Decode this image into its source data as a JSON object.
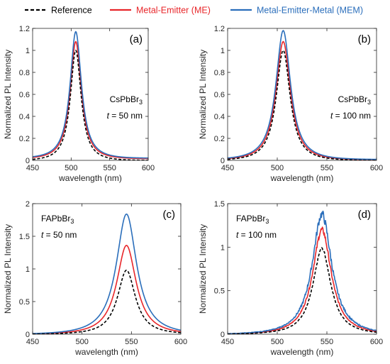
{
  "colors": {
    "reference": "#000000",
    "me": "#e8262a",
    "mem": "#2a6ebb"
  },
  "legend": [
    {
      "name": "Reference",
      "color": "#000000",
      "dashed": true
    },
    {
      "name": "Metal-Emitter (ME)",
      "color": "#e8262a",
      "dashed": false
    },
    {
      "name": "Metal-Emitter-Metal (MEM)",
      "color": "#2a6ebb",
      "dashed": false
    }
  ],
  "chart_data": [
    {
      "type": "line",
      "panel_label": "(a)",
      "material": "CsPbBr",
      "material_sub": "3",
      "thickness": "= 50 nm",
      "annot_pos": "right",
      "xlabel": "wavelength (nm)",
      "ylabel": "Normalized PL Intensity",
      "xlim": [
        450,
        600
      ],
      "ylim": [
        0,
        1.2
      ],
      "xticks": [
        "450",
        "500",
        "550",
        "600"
      ],
      "yticks": [
        "0",
        "0.2",
        "0.4",
        "0.6",
        "0.8",
        "1",
        "1.2"
      ],
      "ytick_values": [
        0,
        0.2,
        0.4,
        0.6,
        0.8,
        1.0,
        1.2
      ],
      "series": [
        {
          "name": "Reference",
          "peak": 1.0,
          "center": 506,
          "width": 8.5,
          "baseline": 0.0,
          "noise": 0
        },
        {
          "name": "Metal-Emitter (ME)",
          "peak": 1.08,
          "center": 506,
          "width": 8.8,
          "baseline": 0.015,
          "noise": 0
        },
        {
          "name": "Metal-Emitter-Metal (MEM)",
          "peak": 1.17,
          "center": 506,
          "width": 9.0,
          "baseline": 0.02,
          "noise": 0
        }
      ]
    },
    {
      "type": "line",
      "panel_label": "(b)",
      "material": "CsPbBr",
      "material_sub": "3",
      "thickness": "= 100 nm",
      "annot_pos": "right",
      "xlabel": "wavelength (nm)",
      "ylabel": "Normalized PL Intensity",
      "xlim": [
        450,
        600
      ],
      "ylim": [
        0,
        1.2
      ],
      "xticks": [
        "450",
        "500",
        "550",
        "600"
      ],
      "yticks": [
        "0",
        "0.2",
        "0.4",
        "0.6",
        "0.8",
        "1",
        "1.2"
      ],
      "ytick_values": [
        0,
        0.2,
        0.4,
        0.6,
        0.8,
        1.0,
        1.2
      ],
      "series": [
        {
          "name": "Reference",
          "peak": 1.0,
          "center": 506,
          "width": 8.5,
          "baseline": 0.0,
          "noise": 0
        },
        {
          "name": "Metal-Emitter (ME)",
          "peak": 1.08,
          "center": 506,
          "width": 8.8,
          "baseline": 0.005,
          "noise": 0
        },
        {
          "name": "Metal-Emitter-Metal (MEM)",
          "peak": 1.18,
          "center": 506,
          "width": 9.0,
          "baseline": 0.008,
          "noise": 0
        }
      ]
    },
    {
      "type": "line",
      "panel_label": "(c)",
      "material": "FAPbBr",
      "material_sub": "3",
      "thickness": "= 50 nm",
      "annot_pos": "left",
      "xlabel": "wavelength (nm)",
      "ylabel": "Normalized PL Intensity",
      "xlim": [
        450,
        600
      ],
      "ylim": [
        0,
        2
      ],
      "xticks": [
        "450",
        "500",
        "550",
        "600"
      ],
      "yticks": [
        "0",
        "0.5",
        "1",
        "1.5",
        "2"
      ],
      "ytick_values": [
        0,
        0.5,
        1.0,
        1.5,
        2.0
      ],
      "series": [
        {
          "name": "Reference",
          "peak": 0.98,
          "center": 545,
          "width": 11,
          "baseline": 0.0,
          "noise": 0
        },
        {
          "name": "Metal-Emitter (ME)",
          "peak": 1.36,
          "center": 545,
          "width": 12,
          "baseline": 0.0,
          "noise": 0
        },
        {
          "name": "Metal-Emitter-Metal (MEM)",
          "peak": 1.84,
          "center": 545,
          "width": 12.5,
          "baseline": 0.0,
          "noise": 0
        }
      ]
    },
    {
      "type": "line",
      "panel_label": "(d)",
      "material": "FAPbBr",
      "material_sub": "3",
      "thickness": "= 100 nm",
      "annot_pos": "left",
      "xlabel": "wavelength (nm)",
      "ylabel": "Normalized PL Intensity",
      "xlim": [
        450,
        600
      ],
      "ylim": [
        0,
        1.5
      ],
      "xticks": [
        "450",
        "500",
        "550",
        "600"
      ],
      "yticks": [
        "0",
        "0.5",
        "1",
        "1.5"
      ],
      "ytick_values": [
        0,
        0.5,
        1.0,
        1.5
      ],
      "series": [
        {
          "name": "Reference",
          "peak": 0.98,
          "center": 545,
          "width": 11,
          "baseline": 0.0,
          "noise": 0.015
        },
        {
          "name": "Metal-Emitter (ME)",
          "peak": 1.2,
          "center": 545,
          "width": 11.5,
          "baseline": 0.0,
          "noise": 0.03
        },
        {
          "name": "Metal-Emitter-Metal (MEM)",
          "peak": 1.38,
          "center": 545,
          "width": 12,
          "baseline": 0.0,
          "noise": 0.05
        }
      ]
    }
  ]
}
